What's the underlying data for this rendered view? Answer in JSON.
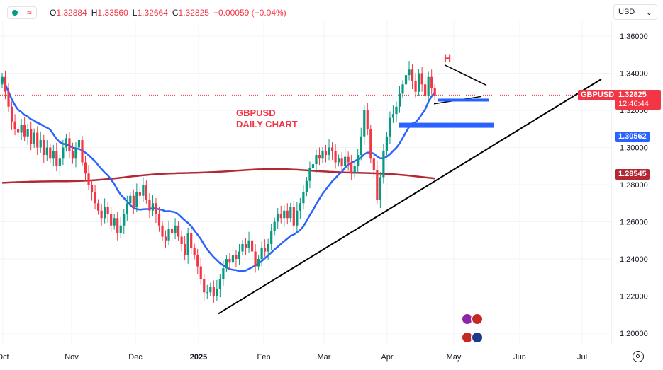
{
  "header": {
    "ohlc": [
      {
        "k": "O",
        "v": "1.32884"
      },
      {
        "k": "H",
        "v": "1.33560"
      },
      {
        "k": "L",
        "v": "1.32664"
      },
      {
        "k": "C",
        "v": "1.32825"
      },
      {
        "k": "",
        "v": "−0.00059 (−0.04%)"
      }
    ],
    "currency": "USD"
  },
  "chart_data": {
    "type": "candlestick",
    "symbol_label": "GBPUSD",
    "annotation": [
      "GBPUSD",
      "DAILY CHART"
    ],
    "pattern_label": "H",
    "ylim": [
      1.19,
      1.37
    ],
    "y_ticks": [
      "1.36000",
      "1.34000",
      "1.32000",
      "1.30000",
      "1.28000",
      "1.26000",
      "1.24000",
      "1.22000",
      "1.20000"
    ],
    "x_ticks": [
      "Oct",
      "Nov",
      "Dec",
      "2025",
      "Feb",
      "Mar",
      "Apr",
      "May",
      "Jun",
      "Jul"
    ],
    "current_price": {
      "label": "1.32825",
      "value": 1.32825,
      "countdown": "12:46:44"
    },
    "ma_labels": {
      "ma50": "1.30562",
      "ma200": "1.28545"
    },
    "colors": {
      "up": "#089981",
      "down": "#f23645",
      "ma50": "#2962ff",
      "ma200": "#b22833",
      "trend": "#000000",
      "zone": "#2962ff"
    },
    "closes": [
      1.338,
      1.33,
      1.322,
      1.314,
      1.31,
      1.308,
      1.312,
      1.306,
      1.31,
      1.302,
      1.308,
      1.3,
      1.304,
      1.296,
      1.3,
      1.294,
      1.298,
      1.29,
      1.294,
      1.3,
      1.305,
      1.298,
      1.294,
      1.3,
      1.304,
      1.292,
      1.286,
      1.28,
      1.276,
      1.27,
      1.266,
      1.262,
      1.268,
      1.264,
      1.258,
      1.262,
      1.254,
      1.258,
      1.264,
      1.27,
      1.274,
      1.268,
      1.276,
      1.274,
      1.28,
      1.272,
      1.266,
      1.27,
      1.264,
      1.258,
      1.252,
      1.25,
      1.256,
      1.254,
      1.258,
      1.252,
      1.248,
      1.242,
      1.254,
      1.246,
      1.242,
      1.236,
      1.229,
      1.222,
      1.222,
      1.225,
      1.22,
      1.224,
      1.229,
      1.235,
      1.24,
      1.238,
      1.242,
      1.24,
      1.244,
      1.248,
      1.246,
      1.25,
      1.244,
      1.236,
      1.24,
      1.246,
      1.244,
      1.248,
      1.255,
      1.26,
      1.264,
      1.262,
      1.266,
      1.262,
      1.268,
      1.258,
      1.266,
      1.27,
      1.276,
      1.282,
      1.289,
      1.291,
      1.296,
      1.294,
      1.298,
      1.296,
      1.3,
      1.298,
      1.292,
      1.294,
      1.29,
      1.295,
      1.292,
      1.286,
      1.29,
      1.296,
      1.306,
      1.32,
      1.31,
      1.294,
      1.288,
      1.272,
      1.284,
      1.298,
      1.306,
      1.316,
      1.318,
      1.322,
      1.329,
      1.334,
      1.339,
      1.342,
      1.336,
      1.33,
      1.34,
      1.334,
      1.328,
      1.338,
      1.332,
      1.328
    ]
  }
}
